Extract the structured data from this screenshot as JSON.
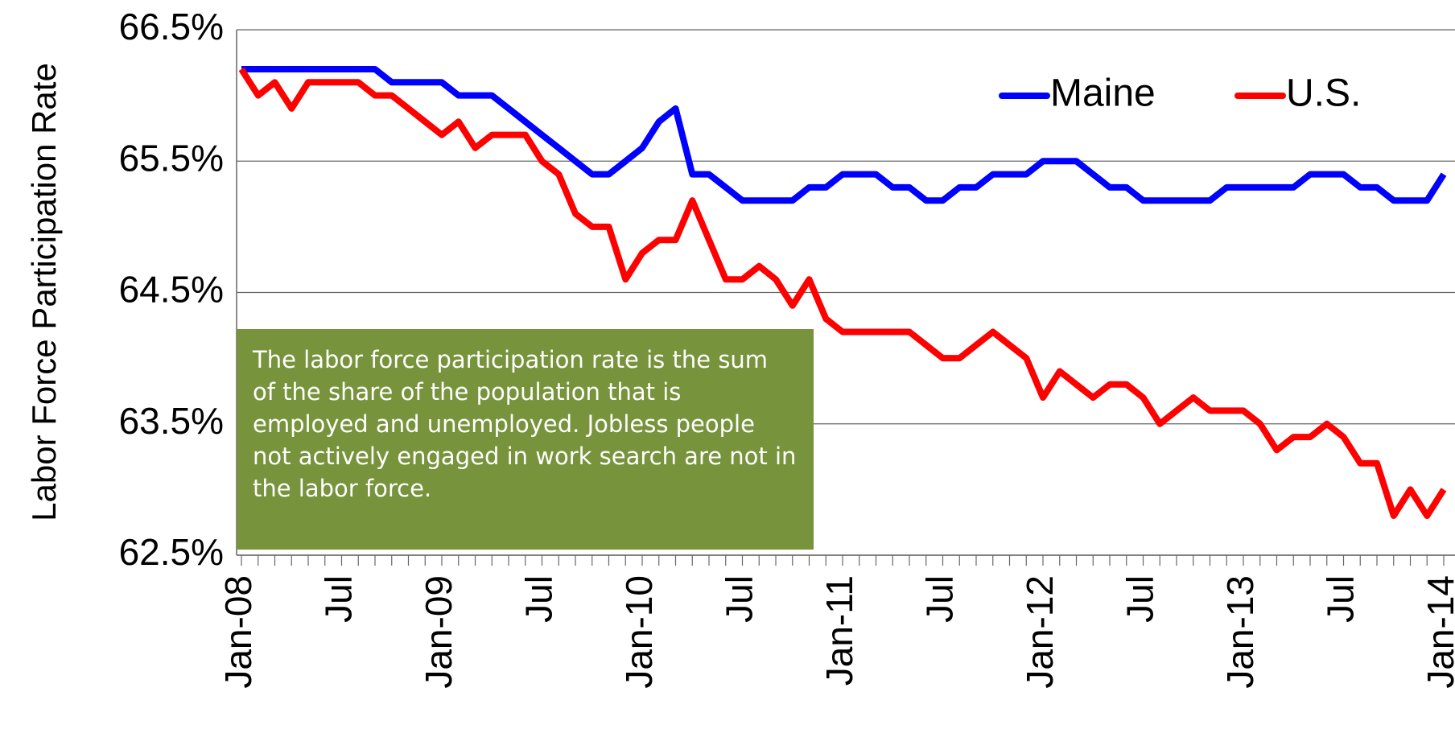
{
  "chart_data": {
    "type": "line",
    "y_label": "Labor Force Participation Rate",
    "annotation": "The labor force participation rate is the sum of the share of the population that is employed and unemployed. Jobless people not actively engaged in work search are not in the labor force.",
    "categories": [
      "Jan-08",
      null,
      null,
      null,
      null,
      null,
      "Jul",
      null,
      null,
      null,
      null,
      null,
      "Jan-09",
      null,
      null,
      null,
      null,
      null,
      "Jul",
      null,
      null,
      null,
      null,
      null,
      "Jan-10",
      null,
      null,
      null,
      null,
      null,
      "Jul",
      null,
      null,
      null,
      null,
      null,
      "Jan-11",
      null,
      null,
      null,
      null,
      null,
      "Jul",
      null,
      null,
      null,
      null,
      null,
      "Jan-12",
      null,
      null,
      null,
      null,
      null,
      "Jul",
      null,
      null,
      null,
      null,
      null,
      "Jan-13",
      null,
      null,
      null,
      null,
      null,
      "Jul",
      null,
      null,
      null,
      null,
      null,
      "Jan-14"
    ],
    "series": [
      {
        "name": "Maine",
        "color": "#0000ff",
        "values": [
          66.2,
          66.2,
          66.2,
          66.2,
          66.2,
          66.2,
          66.2,
          66.2,
          66.2,
          66.1,
          66.1,
          66.1,
          66.1,
          66.0,
          66.0,
          66.0,
          65.9,
          65.8,
          65.7,
          65.6,
          65.5,
          65.4,
          65.4,
          65.5,
          65.6,
          65.8,
          65.9,
          65.4,
          65.4,
          65.3,
          65.2,
          65.2,
          65.2,
          65.2,
          65.3,
          65.3,
          65.4,
          65.4,
          65.4,
          65.3,
          65.3,
          65.2,
          65.2,
          65.3,
          65.3,
          65.4,
          65.4,
          65.4,
          65.5,
          65.5,
          65.5,
          65.4,
          65.3,
          65.3,
          65.2,
          65.2,
          65.2,
          65.2,
          65.2,
          65.3,
          65.3,
          65.3,
          65.3,
          65.3,
          65.4,
          65.4,
          65.4,
          65.3,
          65.3,
          65.2,
          65.2,
          65.2,
          65.4
        ]
      },
      {
        "name": "U.S.",
        "color": "#ff0000",
        "values": [
          66.2,
          66.0,
          66.1,
          65.9,
          66.1,
          66.1,
          66.1,
          66.1,
          66.0,
          66.0,
          65.9,
          65.8,
          65.7,
          65.8,
          65.6,
          65.7,
          65.7,
          65.7,
          65.5,
          65.4,
          65.1,
          65.0,
          65.0,
          64.6,
          64.8,
          64.9,
          64.9,
          65.2,
          64.9,
          64.6,
          64.6,
          64.7,
          64.6,
          64.4,
          64.6,
          64.3,
          64.2,
          64.2,
          64.2,
          64.2,
          64.2,
          64.1,
          64.0,
          64.0,
          64.1,
          64.2,
          64.1,
          64.0,
          63.7,
          63.9,
          63.8,
          63.7,
          63.8,
          63.8,
          63.7,
          63.5,
          63.6,
          63.7,
          63.6,
          63.6,
          63.6,
          63.5,
          63.3,
          63.4,
          63.4,
          63.5,
          63.4,
          63.2,
          63.2,
          62.8,
          63.0,
          62.8,
          63.0
        ]
      }
    ],
    "ylim": [
      62.5,
      66.5
    ],
    "yticks": [
      {
        "value": 62.5,
        "label": "62.5%"
      },
      {
        "value": 63.5,
        "label": "63.5%"
      },
      {
        "value": 64.5,
        "label": "64.5%"
      },
      {
        "value": 65.5,
        "label": "65.5%"
      },
      {
        "value": 66.5,
        "label": "66.5%"
      }
    ],
    "grid": true,
    "legend": "top-right"
  }
}
